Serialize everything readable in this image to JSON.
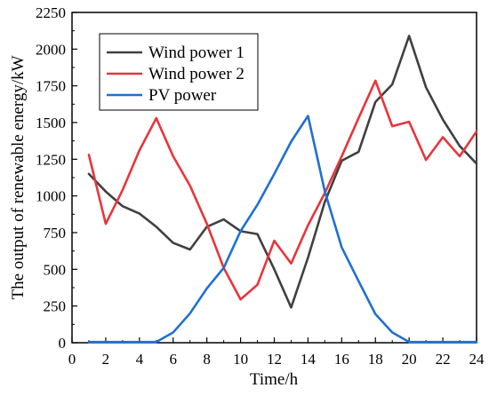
{
  "chart_data": {
    "type": "line",
    "xlabel": "Time/h",
    "ylabel": "The output of renewable energy/kW",
    "xlim": [
      0,
      24
    ],
    "ylim": [
      0,
      2250
    ],
    "x_ticks": [
      0,
      2,
      4,
      6,
      8,
      10,
      12,
      14,
      16,
      18,
      20,
      22,
      24
    ],
    "y_ticks": [
      0,
      250,
      500,
      750,
      1000,
      1250,
      1500,
      1750,
      2000,
      2250
    ],
    "grid": false,
    "legend_position": "top-left",
    "x": [
      1,
      2,
      3,
      4,
      5,
      6,
      7,
      8,
      9,
      10,
      11,
      12,
      13,
      14,
      15,
      16,
      17,
      18,
      19,
      20,
      21,
      22,
      23,
      24
    ],
    "series": [
      {
        "name": "Wind power 1",
        "color": "#404040",
        "values": [
          1150,
          1030,
          930,
          880,
          790,
          680,
          635,
          790,
          840,
          760,
          740,
          500,
          240,
          580,
          960,
          1240,
          1300,
          1640,
          1760,
          2090,
          1740,
          1520,
          1340,
          1220
        ]
      },
      {
        "name": "Wind power 2",
        "color": "#e8353a",
        "values": [
          1280,
          810,
          1040,
          1310,
          1530,
          1270,
          1070,
          810,
          510,
          295,
          395,
          695,
          540,
          800,
          1020,
          1270,
          1530,
          1785,
          1475,
          1505,
          1245,
          1400,
          1270,
          1440
        ]
      },
      {
        "name": "PV power",
        "color": "#1f6fd6",
        "values": [
          5,
          5,
          5,
          5,
          5,
          70,
          200,
          370,
          510,
          760,
          940,
          1150,
          1370,
          1545,
          1030,
          650,
          420,
          195,
          70,
          5,
          5,
          5,
          5,
          5
        ]
      }
    ]
  }
}
